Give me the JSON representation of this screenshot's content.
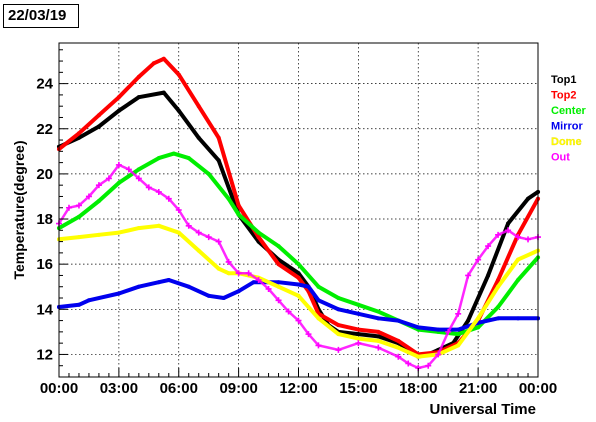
{
  "date_label": "22/03/19",
  "colors": {
    "Top1": "#000000",
    "Top2": "#ff0000",
    "Center": "#00ee00",
    "Mirror": "#0000ee",
    "Dome": "#ffff00",
    "Out": "#ff00ff"
  },
  "chart_data": {
    "type": "scatter",
    "title": "",
    "xlabel": "Universal Time",
    "ylabel": "Temperature(degree)",
    "xlim": [
      "00:00",
      "24:00"
    ],
    "ylim": [
      11,
      25.8
    ],
    "grid": "dotted",
    "legend_position": "right",
    "x_ticks": [
      "00:00",
      "03:00",
      "06:00",
      "09:00",
      "12:00",
      "15:00",
      "18:00",
      "21:00",
      "00:00"
    ],
    "y_ticks": [
      12,
      14,
      16,
      18,
      20,
      22,
      24
    ],
    "series": [
      {
        "name": "Top1",
        "points": [
          [
            "00:00",
            21.2
          ],
          [
            "01:00",
            21.6
          ],
          [
            "02:00",
            22.1
          ],
          [
            "03:00",
            22.8
          ],
          [
            "04:00",
            23.4
          ],
          [
            "05:15",
            23.6
          ],
          [
            "06:00",
            22.8
          ],
          [
            "07:00",
            21.6
          ],
          [
            "08:00",
            20.6
          ],
          [
            "09:00",
            18.2
          ],
          [
            "10:00",
            17.0
          ],
          [
            "11:00",
            16.2
          ],
          [
            "12:00",
            15.6
          ],
          [
            "12:30",
            15.0
          ],
          [
            "13:00",
            14.0
          ],
          [
            "13:30",
            13.3
          ],
          [
            "14:00",
            13.0
          ],
          [
            "15:00",
            12.9
          ],
          [
            "16:00",
            12.8
          ],
          [
            "17:00",
            12.5
          ],
          [
            "18:00",
            11.9
          ],
          [
            "18:30",
            12.0
          ],
          [
            "19:00",
            12.2
          ],
          [
            "19:45",
            12.5
          ],
          [
            "20:30",
            13.5
          ],
          [
            "21:30",
            15.5
          ],
          [
            "22:30",
            17.8
          ],
          [
            "23:30",
            18.9
          ],
          [
            "24:00",
            19.2
          ]
        ]
      },
      {
        "name": "Top2",
        "points": [
          [
            "00:00",
            21.1
          ],
          [
            "01:00",
            21.8
          ],
          [
            "02:00",
            22.6
          ],
          [
            "03:00",
            23.4
          ],
          [
            "04:00",
            24.3
          ],
          [
            "04:45",
            24.9
          ],
          [
            "05:15",
            25.1
          ],
          [
            "06:00",
            24.4
          ],
          [
            "07:00",
            23.0
          ],
          [
            "08:00",
            21.6
          ],
          [
            "09:00",
            18.6
          ],
          [
            "10:00",
            17.2
          ],
          [
            "11:00",
            16.0
          ],
          [
            "12:00",
            15.4
          ],
          [
            "12:30",
            14.8
          ],
          [
            "13:00",
            13.8
          ],
          [
            "14:00",
            13.3
          ],
          [
            "15:00",
            13.1
          ],
          [
            "16:00",
            13.0
          ],
          [
            "17:00",
            12.6
          ],
          [
            "18:00",
            12.0
          ],
          [
            "19:00",
            12.1
          ],
          [
            "20:00",
            12.5
          ],
          [
            "21:00",
            13.5
          ],
          [
            "22:00",
            15.3
          ],
          [
            "23:00",
            17.3
          ],
          [
            "24:00",
            18.9
          ]
        ]
      },
      {
        "name": "Center",
        "points": [
          [
            "00:00",
            17.6
          ],
          [
            "01:00",
            18.1
          ],
          [
            "02:00",
            18.8
          ],
          [
            "03:00",
            19.6
          ],
          [
            "04:00",
            20.2
          ],
          [
            "05:00",
            20.7
          ],
          [
            "05:45",
            20.9
          ],
          [
            "06:30",
            20.7
          ],
          [
            "07:30",
            20.0
          ],
          [
            "08:30",
            18.9
          ],
          [
            "09:00",
            18.2
          ],
          [
            "10:00",
            17.4
          ],
          [
            "11:00",
            16.8
          ],
          [
            "12:00",
            16.0
          ],
          [
            "13:00",
            15.0
          ],
          [
            "14:00",
            14.5
          ],
          [
            "15:00",
            14.2
          ],
          [
            "16:00",
            13.9
          ],
          [
            "17:00",
            13.5
          ],
          [
            "18:00",
            13.1
          ],
          [
            "19:00",
            13.0
          ],
          [
            "20:00",
            12.9
          ],
          [
            "21:00",
            13.2
          ],
          [
            "22:00",
            14.1
          ],
          [
            "23:00",
            15.3
          ],
          [
            "24:00",
            16.3
          ]
        ]
      },
      {
        "name": "Mirror",
        "points": [
          [
            "00:00",
            14.1
          ],
          [
            "01:00",
            14.2
          ],
          [
            "01:30",
            14.4
          ],
          [
            "03:00",
            14.7
          ],
          [
            "04:00",
            15.0
          ],
          [
            "05:00",
            15.2
          ],
          [
            "05:30",
            15.3
          ],
          [
            "06:30",
            15.0
          ],
          [
            "07:30",
            14.6
          ],
          [
            "08:15",
            14.5
          ],
          [
            "09:00",
            14.8
          ],
          [
            "09:45",
            15.2
          ],
          [
            "11:00",
            15.2
          ],
          [
            "12:00",
            15.1
          ],
          [
            "12:30",
            15.0
          ],
          [
            "13:00",
            14.4
          ],
          [
            "14:00",
            14.0
          ],
          [
            "15:00",
            13.8
          ],
          [
            "16:00",
            13.6
          ],
          [
            "17:00",
            13.5
          ],
          [
            "18:00",
            13.2
          ],
          [
            "19:00",
            13.1
          ],
          [
            "20:00",
            13.1
          ],
          [
            "21:00",
            13.4
          ],
          [
            "22:00",
            13.6
          ],
          [
            "23:00",
            13.6
          ],
          [
            "24:00",
            13.6
          ]
        ]
      },
      {
        "name": "Dome",
        "points": [
          [
            "00:00",
            17.1
          ],
          [
            "01:00",
            17.2
          ],
          [
            "02:00",
            17.3
          ],
          [
            "03:00",
            17.4
          ],
          [
            "04:00",
            17.6
          ],
          [
            "05:00",
            17.7
          ],
          [
            "06:00",
            17.4
          ],
          [
            "07:00",
            16.6
          ],
          [
            "08:00",
            15.8
          ],
          [
            "08:30",
            15.6
          ],
          [
            "09:00",
            15.6
          ],
          [
            "10:00",
            15.4
          ],
          [
            "11:00",
            15.0
          ],
          [
            "12:00",
            14.6
          ],
          [
            "13:00",
            13.6
          ],
          [
            "14:00",
            12.9
          ],
          [
            "15:00",
            12.7
          ],
          [
            "16:00",
            12.6
          ],
          [
            "17:00",
            12.3
          ],
          [
            "18:00",
            11.9
          ],
          [
            "19:00",
            12.0
          ],
          [
            "20:00",
            12.4
          ],
          [
            "21:00",
            13.6
          ],
          [
            "22:00",
            15.0
          ],
          [
            "23:00",
            16.2
          ],
          [
            "24:00",
            16.6
          ]
        ]
      },
      {
        "name": "Out",
        "points": [
          [
            "00:00",
            17.8
          ],
          [
            "00:30",
            18.5
          ],
          [
            "01:00",
            18.6
          ],
          [
            "01:30",
            19.0
          ],
          [
            "02:00",
            19.5
          ],
          [
            "02:30",
            19.8
          ],
          [
            "03:00",
            20.4
          ],
          [
            "03:30",
            20.2
          ],
          [
            "04:00",
            19.8
          ],
          [
            "04:30",
            19.4
          ],
          [
            "05:00",
            19.2
          ],
          [
            "05:30",
            18.9
          ],
          [
            "06:00",
            18.4
          ],
          [
            "06:30",
            17.7
          ],
          [
            "07:00",
            17.4
          ],
          [
            "07:30",
            17.2
          ],
          [
            "08:00",
            17.0
          ],
          [
            "08:30",
            16.1
          ],
          [
            "09:00",
            15.6
          ],
          [
            "09:30",
            15.6
          ],
          [
            "10:00",
            15.3
          ],
          [
            "10:30",
            14.9
          ],
          [
            "11:00",
            14.4
          ],
          [
            "11:30",
            13.9
          ],
          [
            "12:00",
            13.5
          ],
          [
            "12:30",
            12.9
          ],
          [
            "13:00",
            12.4
          ],
          [
            "14:00",
            12.2
          ],
          [
            "15:00",
            12.5
          ],
          [
            "16:00",
            12.3
          ],
          [
            "17:00",
            11.9
          ],
          [
            "17:30",
            11.6
          ],
          [
            "18:00",
            11.4
          ],
          [
            "18:30",
            11.5
          ],
          [
            "19:00",
            12.0
          ],
          [
            "19:30",
            13.0
          ],
          [
            "20:00",
            13.8
          ],
          [
            "20:30",
            15.5
          ],
          [
            "21:00",
            16.2
          ],
          [
            "21:30",
            16.8
          ],
          [
            "22:00",
            17.3
          ],
          [
            "22:30",
            17.5
          ],
          [
            "23:00",
            17.2
          ],
          [
            "23:30",
            17.1
          ],
          [
            "24:00",
            17.2
          ]
        ]
      }
    ]
  }
}
